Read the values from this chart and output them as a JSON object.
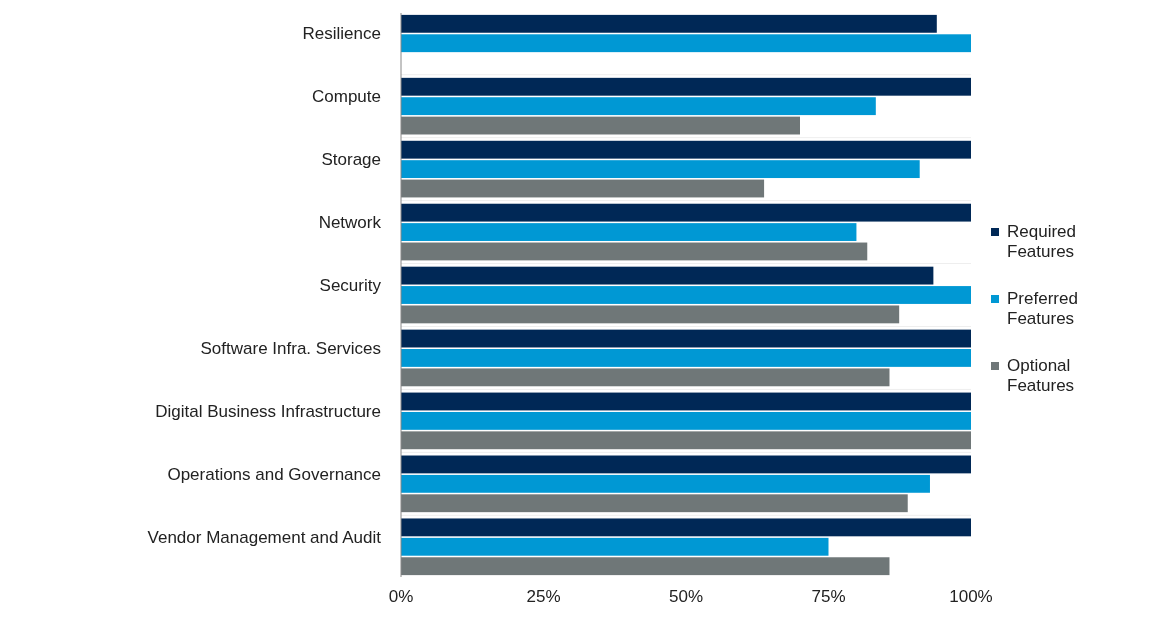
{
  "chart_data": {
    "type": "bar",
    "orientation": "horizontal",
    "categories": [
      "Resilience",
      "Compute",
      "Storage",
      "Network",
      "Security",
      "Software Infra. Services",
      "Digital Business Infrastructure",
      "Operations and Governance",
      "Vendor Management and Audit"
    ],
    "series": [
      {
        "name": "Required Features",
        "color": "#002856",
        "values": [
          94,
          100,
          100,
          100,
          93.4,
          100,
          100,
          100,
          100
        ]
      },
      {
        "name": "Preferred Features",
        "color": "#0098d4",
        "values": [
          100,
          83.3,
          91,
          79.9,
          100,
          100,
          100,
          92.8,
          75
        ]
      },
      {
        "name": "Optional Features",
        "color": "#6f7778",
        "values": [
          null,
          70,
          63.7,
          81.8,
          87.4,
          85.7,
          100,
          88.9,
          85.7
        ]
      }
    ],
    "xlim": [
      0,
      100
    ],
    "xticks": [
      {
        "value": 0,
        "label": "0%"
      },
      {
        "value": 25,
        "label": "25%"
      },
      {
        "value": 50,
        "label": "50%"
      },
      {
        "value": 75,
        "label": "75%"
      },
      {
        "value": 100,
        "label": "100%"
      }
    ],
    "legend": "right",
    "grid": false
  }
}
